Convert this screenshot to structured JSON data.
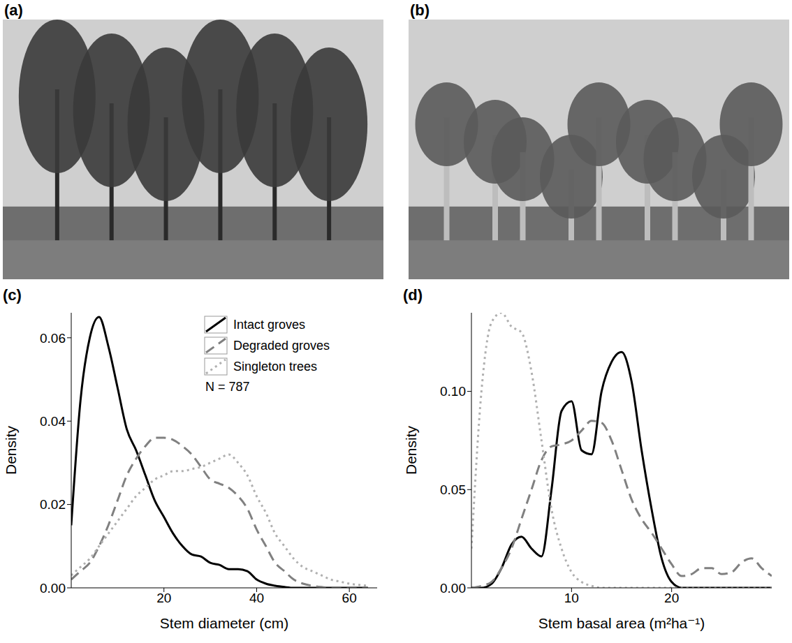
{
  "photos": [
    {
      "label": "(a)"
    },
    {
      "label": "(b)"
    }
  ],
  "chart_data": [
    {
      "type": "line",
      "title": "(c)",
      "x_label": "Stem diameter (cm)",
      "y_label": "Density",
      "annotations": [
        "N = 787"
      ],
      "legend": "upper right",
      "x": [
        0,
        2,
        4,
        6,
        8,
        10,
        12,
        14,
        16,
        18,
        20,
        22,
        24,
        26,
        28,
        30,
        32,
        34,
        36,
        38,
        40,
        42,
        44,
        46,
        48,
        50,
        52,
        54,
        56,
        58,
        60,
        62,
        64
      ],
      "series": [
        {
          "name": "Intact groves",
          "color": "#000000",
          "line_style": "solid",
          "values": [
            0.015,
            0.045,
            0.06,
            0.065,
            0.058,
            0.048,
            0.038,
            0.033,
            0.027,
            0.021,
            0.017,
            0.013,
            0.01,
            0.008,
            0.0075,
            0.006,
            0.0055,
            0.0045,
            0.0045,
            0.004,
            0.002,
            0.001,
            0.0005,
            0.0002,
            0,
            0,
            0,
            0,
            0,
            0,
            0,
            0,
            0
          ]
        },
        {
          "name": "Degraded groves",
          "color": "#808080",
          "line_style": "dashed",
          "values": [
            0.002,
            0.004,
            0.006,
            0.01,
            0.015,
            0.021,
            0.027,
            0.031,
            0.034,
            0.036,
            0.036,
            0.0355,
            0.034,
            0.032,
            0.029,
            0.026,
            0.025,
            0.024,
            0.022,
            0.019,
            0.014,
            0.01,
            0.006,
            0.004,
            0.002,
            0.001,
            0.0005,
            0.0002,
            0,
            0,
            0,
            0,
            0
          ]
        },
        {
          "name": "Singleton trees",
          "color": "#b0b0b0",
          "line_style": "dotted",
          "values": [
            0.003,
            0.005,
            0.007,
            0.01,
            0.013,
            0.016,
            0.019,
            0.022,
            0.024,
            0.026,
            0.027,
            0.028,
            0.028,
            0.0285,
            0.029,
            0.03,
            0.031,
            0.032,
            0.03,
            0.027,
            0.022,
            0.018,
            0.013,
            0.01,
            0.007,
            0.005,
            0.004,
            0.003,
            0.002,
            0.0015,
            0.001,
            0.0007,
            0.0005
          ]
        }
      ],
      "xlim": [
        0,
        66
      ],
      "xticks": [
        20,
        40,
        60
      ],
      "ylim": [
        0,
        0.066
      ],
      "yticks": [
        {
          "value": 0,
          "label": "0.00"
        },
        {
          "value": 0.02,
          "label": "0.02"
        },
        {
          "value": 0.04,
          "label": "0.04"
        },
        {
          "value": 0.06,
          "label": "0.06"
        }
      ]
    },
    {
      "type": "line",
      "title": "(d)",
      "x_label": "Stem basal area (m²ha⁻¹)",
      "y_label": "Density",
      "x": [
        0,
        1,
        2,
        3,
        4,
        5,
        6,
        7,
        8,
        9,
        10,
        11,
        12,
        13,
        14,
        15,
        16,
        17,
        18,
        19,
        20,
        21,
        22,
        23,
        24,
        25,
        26,
        27,
        28,
        29,
        30
      ],
      "series": [
        {
          "name": "Intact groves",
          "color": "#000000",
          "line_style": "solid",
          "values": [
            0,
            0,
            0.002,
            0.01,
            0.022,
            0.026,
            0.02,
            0.016,
            0.05,
            0.09,
            0.095,
            0.07,
            0.068,
            0.1,
            0.115,
            0.12,
            0.105,
            0.07,
            0.04,
            0.015,
            0.003,
            0,
            0,
            0,
            0,
            0,
            0,
            0,
            0,
            0,
            0
          ]
        },
        {
          "name": "Degraded groves",
          "color": "#808080",
          "line_style": "dashed",
          "values": [
            0,
            0.001,
            0.003,
            0.01,
            0.02,
            0.035,
            0.05,
            0.065,
            0.072,
            0.073,
            0.075,
            0.08,
            0.085,
            0.084,
            0.075,
            0.06,
            0.045,
            0.035,
            0.028,
            0.02,
            0.012,
            0.006,
            0.007,
            0.01,
            0.01,
            0.007,
            0.008,
            0.013,
            0.015,
            0.01,
            0.006
          ]
        },
        {
          "name": "Singleton trees",
          "color": "#b0b0b0",
          "line_style": "dotted",
          "values": [
            0.02,
            0.1,
            0.135,
            0.14,
            0.133,
            0.13,
            0.11,
            0.075,
            0.04,
            0.02,
            0.008,
            0.003,
            0.001,
            0,
            0,
            0,
            0,
            0,
            0,
            0,
            0,
            0,
            0,
            0,
            0,
            0,
            0,
            0,
            0,
            0,
            0
          ]
        }
      ],
      "xlim": [
        0,
        30
      ],
      "xticks": [
        10,
        20
      ],
      "ylim": [
        0,
        0.14
      ],
      "yticks": [
        {
          "value": 0,
          "label": "0.00"
        },
        {
          "value": 0.05,
          "label": "0.05"
        },
        {
          "value": 0.1,
          "label": "0.10"
        }
      ]
    }
  ]
}
